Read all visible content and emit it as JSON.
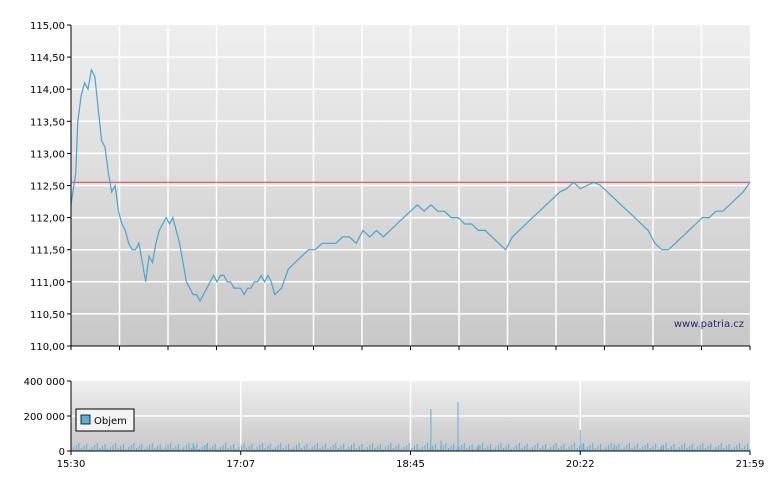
{
  "colors": {
    "price_line": "#4aa3cf",
    "reference_line": "#e05050",
    "volume_bar": "#5ab0d8",
    "grid": "#ffffff",
    "axis": "#000000",
    "plot_top": "#efefef",
    "plot_bottom": "#c8c8c8"
  },
  "watermark": "www.patria.cz",
  "chart_data": [
    {
      "type": "line",
      "xlim": [
        "15:30",
        "21:59"
      ],
      "ylim": [
        110.0,
        115.0
      ],
      "yticks": [
        "110,00",
        "110,50",
        "111,00",
        "111,50",
        "112,00",
        "112,50",
        "113,00",
        "113,50",
        "114,00",
        "114,50",
        "115,00"
      ],
      "grid": true,
      "reference_line": 112.55,
      "series": [
        {
          "x_fraction": [
            0.0,
            0.007,
            0.01,
            0.015,
            0.02,
            0.025,
            0.03,
            0.035,
            0.04,
            0.045,
            0.05,
            0.055,
            0.06,
            0.065,
            0.07,
            0.075,
            0.08,
            0.085,
            0.09,
            0.095,
            0.1,
            0.105,
            0.11,
            0.115,
            0.12,
            0.125,
            0.13,
            0.135,
            0.14,
            0.145,
            0.15,
            0.155,
            0.16,
            0.165,
            0.17,
            0.175,
            0.18,
            0.185,
            0.19,
            0.195,
            0.2,
            0.205,
            0.21,
            0.215,
            0.22,
            0.225,
            0.23,
            0.235,
            0.24,
            0.245,
            0.25,
            0.255,
            0.26,
            0.265,
            0.27,
            0.275,
            0.28,
            0.285,
            0.29,
            0.295,
            0.3,
            0.31,
            0.32,
            0.33,
            0.34,
            0.35,
            0.36,
            0.37,
            0.38,
            0.39,
            0.4,
            0.41,
            0.42,
            0.43,
            0.44,
            0.45,
            0.46,
            0.47,
            0.48,
            0.49,
            0.5,
            0.51,
            0.52,
            0.53,
            0.54,
            0.55,
            0.56,
            0.57,
            0.58,
            0.59,
            0.6,
            0.61,
            0.62,
            0.63,
            0.64,
            0.65,
            0.66,
            0.67,
            0.68,
            0.69,
            0.7,
            0.71,
            0.72,
            0.73,
            0.74,
            0.75,
            0.76,
            0.77,
            0.78,
            0.79,
            0.8,
            0.81,
            0.82,
            0.83,
            0.84,
            0.85,
            0.86,
            0.87,
            0.88,
            0.89,
            0.9,
            0.91,
            0.92,
            0.93,
            0.94,
            0.95,
            0.96,
            0.97,
            0.98,
            0.99,
            1.0
          ],
          "values": [
            112.2,
            112.7,
            113.5,
            113.9,
            114.1,
            114.0,
            114.3,
            114.2,
            113.7,
            113.2,
            113.1,
            112.7,
            112.4,
            112.5,
            112.1,
            111.9,
            111.8,
            111.6,
            111.5,
            111.5,
            111.6,
            111.3,
            111.0,
            111.4,
            111.3,
            111.6,
            111.8,
            111.9,
            112.0,
            111.9,
            112.0,
            111.8,
            111.6,
            111.3,
            111.0,
            110.9,
            110.8,
            110.8,
            110.7,
            110.8,
            110.9,
            111.0,
            111.1,
            111.0,
            111.1,
            111.1,
            111.0,
            111.0,
            110.9,
            110.9,
            110.9,
            110.8,
            110.9,
            110.9,
            111.0,
            111.0,
            111.1,
            111.0,
            111.1,
            111.0,
            110.8,
            110.9,
            111.2,
            111.3,
            111.4,
            111.5,
            111.5,
            111.6,
            111.6,
            111.6,
            111.7,
            111.7,
            111.6,
            111.8,
            111.7,
            111.8,
            111.7,
            111.8,
            111.9,
            112.0,
            112.1,
            112.2,
            112.1,
            112.2,
            112.1,
            112.1,
            112.0,
            112.0,
            111.9,
            111.9,
            111.8,
            111.8,
            111.7,
            111.6,
            111.5,
            111.7,
            111.8,
            111.9,
            112.0,
            112.1,
            112.2,
            112.3,
            112.4,
            112.45,
            112.55,
            112.45,
            112.5,
            112.55,
            112.5,
            112.4,
            112.3,
            112.2,
            112.1,
            112.0,
            111.9,
            111.8,
            111.6,
            111.5,
            111.5,
            111.6,
            111.7,
            111.8,
            111.9,
            112.0,
            112.0,
            112.1,
            112.1,
            112.2,
            112.3,
            112.4,
            112.55
          ]
        }
      ]
    },
    {
      "type": "bar",
      "xticks": [
        "15:30",
        "17:07",
        "18:45",
        "20:22",
        "21:59"
      ],
      "ylim": [
        0,
        400000
      ],
      "yticks": [
        "0",
        "200 000",
        "400 000"
      ],
      "legend": "Objem",
      "legend_position": "bottom-left",
      "volume_spikes": [
        {
          "x_fraction": 0.18,
          "value": 45000
        },
        {
          "x_fraction": 0.2,
          "value": 38000
        },
        {
          "x_fraction": 0.282,
          "value": 30000
        },
        {
          "x_fraction": 0.53,
          "value": 240000
        },
        {
          "x_fraction": 0.545,
          "value": 60000
        },
        {
          "x_fraction": 0.57,
          "value": 280000
        },
        {
          "x_fraction": 0.6,
          "value": 35000
        },
        {
          "x_fraction": 0.75,
          "value": 120000
        },
        {
          "x_fraction": 0.755,
          "value": 45000
        },
        {
          "x_fraction": 0.8,
          "value": 40000
        },
        {
          "x_fraction": 0.87,
          "value": 35000
        }
      ]
    }
  ]
}
